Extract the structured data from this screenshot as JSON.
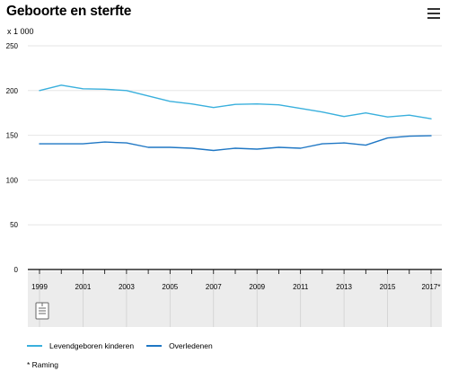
{
  "header": {
    "title": "Geboorte en sterfte",
    "menu_icon": "hamburger-menu-icon"
  },
  "footnote": "* Raming",
  "colors": {
    "levendgeboren": "#3ab0dd",
    "overledenen": "#1f77c4",
    "axis": "#000000",
    "grid": "#e6e6e6",
    "navigator_bg": "#ececec"
  },
  "navigator": {
    "icon": "slider-handle-icon"
  },
  "chart_data": {
    "type": "line",
    "title": "Geboorte en sterfte",
    "unit_label": "x 1 000",
    "x": [
      1999,
      2000,
      2001,
      2002,
      2003,
      2004,
      2005,
      2006,
      2007,
      2008,
      2009,
      2010,
      2011,
      2012,
      2013,
      2014,
      2015,
      2016,
      2017
    ],
    "x_tick_labels": [
      "1999",
      "2001",
      "2003",
      "2005",
      "2007",
      "2009",
      "2011",
      "2013",
      "2015",
      "2017*"
    ],
    "y_ticks": [
      0,
      50,
      100,
      150,
      200,
      250
    ],
    "ylim": [
      0,
      250
    ],
    "grid": true,
    "legend_position": "bottom-left",
    "series": [
      {
        "name": "Levendgeboren kinderen",
        "values": [
          200,
          206,
          202,
          201.5,
          200,
          194,
          188,
          185,
          181,
          184.5,
          185,
          184,
          180,
          176,
          171,
          175,
          170.5,
          172.5,
          168.5
        ]
      },
      {
        "name": "Overledenen",
        "values": [
          140.5,
          140.5,
          140.5,
          142.5,
          141.5,
          136.5,
          136.5,
          135.5,
          133,
          135.5,
          134.5,
          136.5,
          135.5,
          140.5,
          141.5,
          139,
          147,
          149,
          149.5
        ]
      }
    ]
  }
}
